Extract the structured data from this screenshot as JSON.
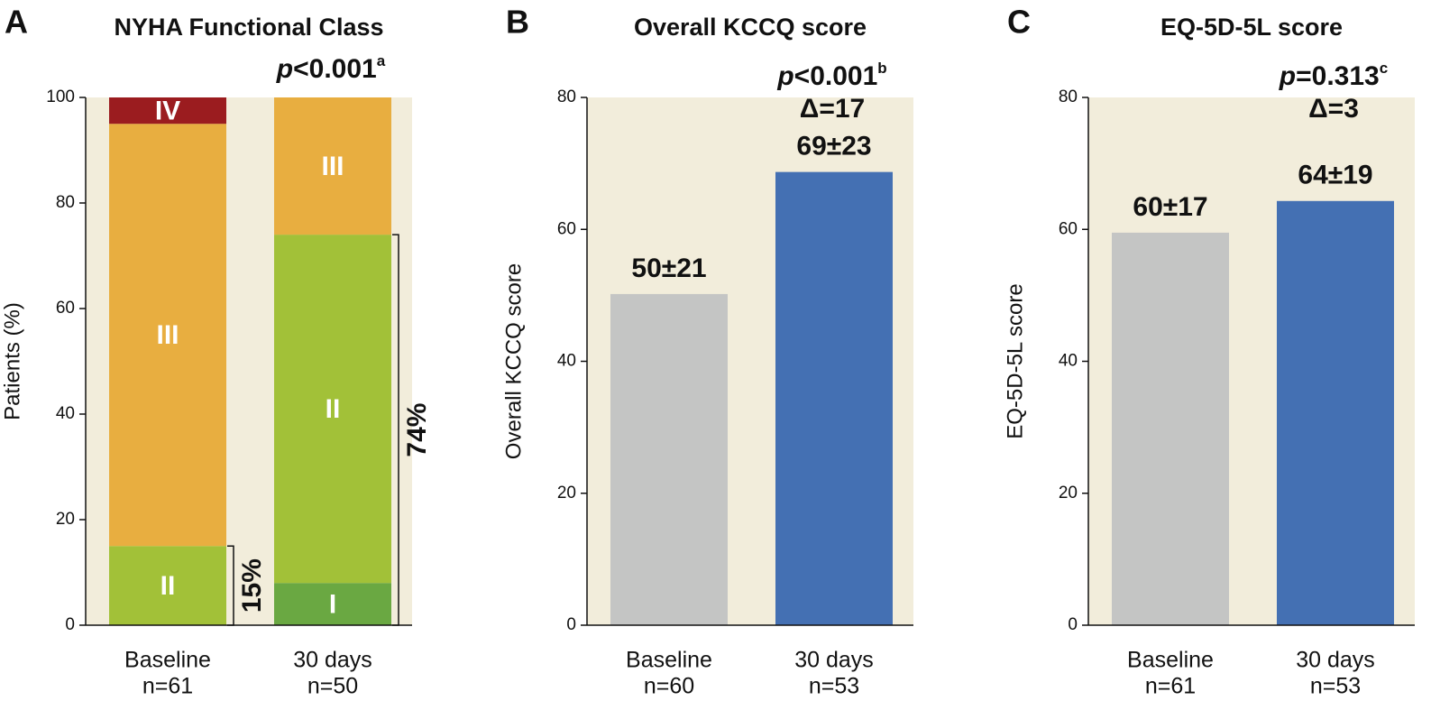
{
  "chart_data": [
    {
      "type": "stacked_bar",
      "panel": "A",
      "title": "NYHA Functional Class",
      "ylabel": "Patients (%)",
      "categories": [
        "Baseline",
        "30 days"
      ],
      "n_labels": [
        "n=61",
        "n=50"
      ],
      "ylim": [
        0,
        100
      ],
      "yticks": [
        0,
        20,
        40,
        60,
        80,
        100
      ],
      "series": [
        {
          "name": "I",
          "color": "#6aa842",
          "values": [
            0,
            8
          ]
        },
        {
          "name": "II",
          "color": "#a2c138",
          "values": [
            15,
            66
          ]
        },
        {
          "name": "III",
          "color": "#e8ae40",
          "values": [
            80,
            26
          ]
        },
        {
          "name": "IV",
          "color": "#9b1c1f",
          "values": [
            5,
            0
          ]
        }
      ],
      "brackets": [
        {
          "category": 0,
          "value": 15,
          "label": "15%"
        },
        {
          "category": 1,
          "value": 74,
          "label": "74%"
        }
      ],
      "annotation": {
        "p": "p",
        "text": "<0.001",
        "sup": "a"
      }
    },
    {
      "type": "bar",
      "panel": "B",
      "title": "Overall KCCQ score",
      "ylabel": "Overall KCCQ score",
      "categories": [
        "Baseline",
        "30 days"
      ],
      "n_labels": [
        "n=60",
        "n=53"
      ],
      "ylim": [
        0,
        80
      ],
      "yticks": [
        0,
        20,
        40,
        60,
        80
      ],
      "values": [
        50.2,
        68.7
      ],
      "value_labels": [
        "50±21",
        "69±23"
      ],
      "colors": [
        "#c4c5c4",
        "#4470b3"
      ],
      "annotation": {
        "p": "p",
        "text": "<0.001",
        "sup": "b",
        "delta": "Δ=17"
      }
    },
    {
      "type": "bar",
      "panel": "C",
      "title": "EQ-5D-5L score",
      "ylabel": "EQ-5D-5L score",
      "categories": [
        "Baseline",
        "30 days"
      ],
      "n_labels": [
        "n=61",
        "n=53"
      ],
      "ylim": [
        0,
        80
      ],
      "yticks": [
        0,
        20,
        40,
        60,
        80
      ],
      "values": [
        59.5,
        64.3
      ],
      "value_labels": [
        "60±17",
        "64±19"
      ],
      "colors": [
        "#c4c5c4",
        "#4470b3"
      ],
      "annotation": {
        "p": "p",
        "text": "=0.313",
        "sup": "c",
        "delta": "Δ=3"
      }
    }
  ]
}
